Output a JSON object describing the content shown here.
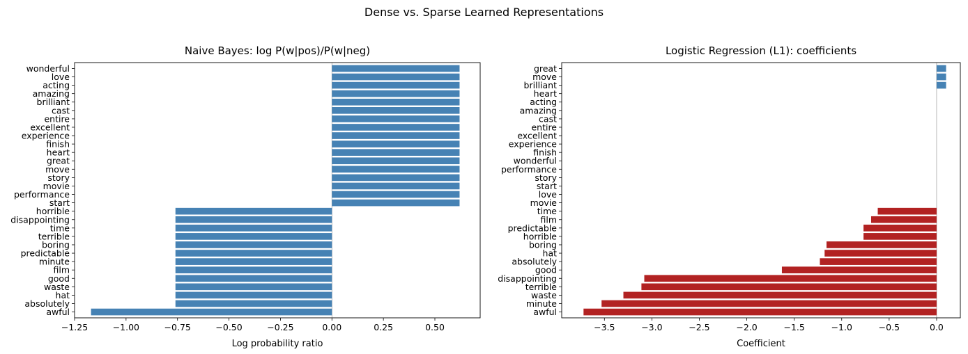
{
  "suptitle": "Dense vs. Sparse Learned Representations",
  "colors": {
    "positive": "#4682B4",
    "negative": "#B22222",
    "zero_line": "#aaaaaa"
  },
  "chart_data": [
    {
      "type": "bar",
      "orientation": "horizontal",
      "title": "Naive Bayes: log P(w|pos)/P(w|neg)",
      "xlabel": "Log probability ratio",
      "ylabel": "",
      "xlim": [
        -1.25,
        0.72
      ],
      "xticks": [
        -1.25,
        -1.0,
        -0.75,
        -0.5,
        -0.25,
        0.0,
        0.25,
        0.5
      ],
      "xtick_labels": [
        "−1.25",
        "−1.00",
        "−0.75",
        "−0.50",
        "−0.25",
        "0.00",
        "0.25",
        "0.50"
      ],
      "grid": false,
      "categories": [
        "wonderful",
        "love",
        "acting",
        "amazing",
        "brilliant",
        "cast",
        "entire",
        "excellent",
        "experience",
        "finish",
        "heart",
        "great",
        "move",
        "story",
        "movie",
        "performance",
        "start",
        "horrible",
        "disappointing",
        "time",
        "terrible",
        "boring",
        "predictable",
        "minute",
        "film",
        "good",
        "waste",
        "hat",
        "absolutely",
        "awful"
      ],
      "values": [
        0.62,
        0.62,
        0.62,
        0.62,
        0.62,
        0.62,
        0.62,
        0.62,
        0.62,
        0.62,
        0.62,
        0.62,
        0.62,
        0.62,
        0.62,
        0.62,
        0.62,
        -0.76,
        -0.76,
        -0.76,
        -0.76,
        -0.76,
        -0.76,
        -0.76,
        -0.76,
        -0.76,
        -0.76,
        -0.76,
        -0.76,
        -1.17
      ],
      "color_rule": "all-positive-color"
    },
    {
      "type": "bar",
      "orientation": "horizontal",
      "title": "Logistic Regression (L1): coefficients",
      "xlabel": "Coefficient",
      "ylabel": "",
      "xlim": [
        -3.95,
        0.25
      ],
      "xticks": [
        -3.5,
        -3.0,
        -2.5,
        -2.0,
        -1.5,
        -1.0,
        -0.5,
        0.0
      ],
      "xtick_labels": [
        "−3.5",
        "−3.0",
        "−2.5",
        "−2.0",
        "−1.5",
        "−1.0",
        "−0.5",
        "0.0"
      ],
      "grid": false,
      "categories": [
        "great",
        "move",
        "brilliant",
        "heart",
        "acting",
        "amazing",
        "cast",
        "entire",
        "excellent",
        "experience",
        "finish",
        "wonderful",
        "performance",
        "story",
        "start",
        "love",
        "movie",
        "time",
        "film",
        "predictable",
        "horrible",
        "boring",
        "hat",
        "absolutely",
        "good",
        "disappointing",
        "terrible",
        "waste",
        "minute",
        "awful"
      ],
      "values": [
        0.1,
        0.1,
        0.1,
        0,
        0,
        0,
        0,
        0,
        0,
        0,
        0,
        0,
        0,
        0,
        0,
        0,
        0,
        -0.62,
        -0.69,
        -0.77,
        -0.77,
        -1.16,
        -1.18,
        -1.23,
        -1.63,
        -3.08,
        -3.11,
        -3.3,
        -3.53,
        -3.72
      ],
      "color_rule": "sign"
    }
  ]
}
